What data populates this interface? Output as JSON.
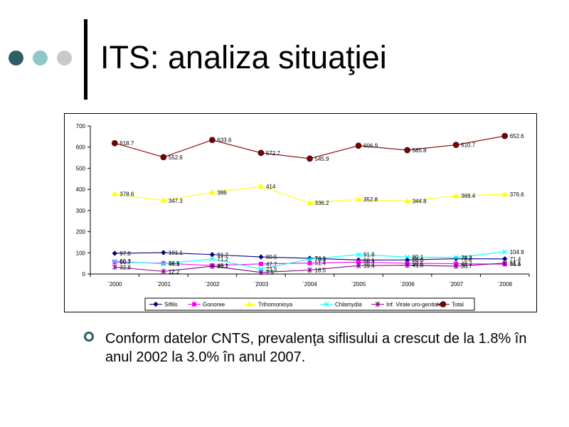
{
  "slide": {
    "title": "ITS: analiza situaţiei",
    "bullet": "Conform datelor CNTS, prevalenţa siflisului a crescut de la 1.8% în anul 2002 la 3.0% în anul 2007."
  },
  "decorations": {
    "dot_colors": [
      "#2f5f63",
      "#8fc7c6",
      "#c8c8c8"
    ]
  },
  "chart_data": {
    "type": "line",
    "categories": [
      "`2000",
      "`2001",
      "`2002",
      "`2003",
      "`2004",
      "`2005",
      "`2006",
      "`2007",
      "`2008"
    ],
    "ylim": [
      0,
      700
    ],
    "yticks": [
      0,
      100,
      200,
      300,
      400,
      500,
      600,
      700
    ],
    "grid": false,
    "legend_position": "bottom",
    "series": [
      {
        "name": "Sifilis",
        "color": "#000080",
        "marker": "diamond",
        "values": [
          97.8,
          101.1,
          91.7,
          80.5,
          74.1,
          66.1,
          66.6,
          72.2,
          71.4
        ],
        "labels": [
          "97.8",
          "101.1",
          "91.7",
          "80.5",
          "74.1",
          "66.1",
          "66.6",
          "72.2",
          "71.4"
        ]
      },
      {
        "name": "Gonoree",
        "color": "#ff00ff",
        "marker": "square",
        "values": [
          56.7,
          50.9,
          40.1,
          47.7,
          51.4,
          56.3,
          50.6,
          48.7,
          46.6
        ],
        "labels": [
          "56.7",
          "50.9",
          "40.1",
          "47.7",
          "51.4",
          "56.3",
          "50.6",
          "48.7",
          "46.6"
        ]
      },
      {
        "name": "Trihomonioya",
        "color": "#ffff00",
        "marker": "triangle",
        "values": [
          378.6,
          347.3,
          386,
          414,
          336.2,
          352.8,
          344.8,
          369.4,
          376.6
        ],
        "labels": [
          "378.6",
          "347.3",
          "386",
          "414",
          "336.2",
          "352.8",
          "344.8",
          "369.4",
          "376.6"
        ]
      },
      {
        "name": "Chlamydia",
        "color": "#00ffff",
        "marker": "x",
        "values": [
          60.3,
          48.1,
          71.2,
          23.5,
          70.3,
          91.8,
          80.1,
          78.2,
          104.9
        ],
        "labels": [
          "60.3",
          "48.1",
          "71.2",
          "23.5",
          "70.3",
          "91.8",
          "80.1",
          "78.2",
          "104.9"
        ]
      },
      {
        "name": "Inf. Virale uro-genitale",
        "color": "#800080",
        "marker": "star",
        "values": [
          32.8,
          12.2,
          36.7,
          7.5,
          18.5,
          39.4,
          41.6,
          36.7,
          51.1
        ],
        "labels": [
          "32.8",
          "12.2",
          "36.7",
          "7.5",
          "18.5",
          "39.4",
          "41.6",
          "36.7",
          "51.1"
        ]
      },
      {
        "name": "Total",
        "color": "#800000",
        "marker": "circle",
        "values": [
          618.7,
          552.6,
          633.6,
          572.7,
          545.9,
          606.9,
          585.8,
          610.7,
          652.6
        ],
        "labels": [
          "618.7",
          "552.6",
          "633.6",
          "572.7",
          "545.9",
          "606.9",
          "585.8",
          "610.7",
          "652.6"
        ]
      }
    ]
  }
}
